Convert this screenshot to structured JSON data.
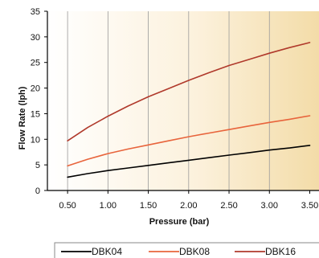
{
  "chart_data": {
    "type": "line",
    "xlabel": "Pressure (bar)",
    "ylabel": "Flow Rate (lph)",
    "xlim": [
      0.25,
      3.5
    ],
    "ylim": [
      0,
      35
    ],
    "x_ticks": [
      "0.50",
      "1.00",
      "1.50",
      "2.00",
      "2.50",
      "3.00",
      "3.50"
    ],
    "y_ticks": [
      "0",
      "5",
      "10",
      "15",
      "20",
      "25",
      "30",
      "35"
    ],
    "grid": "vertical",
    "legend_position": "bottom",
    "x": [
      0.5,
      0.75,
      1.0,
      1.25,
      1.5,
      1.75,
      2.0,
      2.25,
      2.5,
      2.75,
      3.0,
      3.25,
      3.5
    ],
    "series": [
      {
        "name": "DBK04",
        "color": "#000000",
        "values": [
          2.6,
          3.3,
          3.9,
          4.4,
          4.9,
          5.4,
          5.9,
          6.4,
          6.9,
          7.4,
          7.9,
          8.3,
          8.8
        ]
      },
      {
        "name": "DBK08",
        "color": "#e8643c",
        "values": [
          4.8,
          6.1,
          7.2,
          8.1,
          8.9,
          9.7,
          10.5,
          11.2,
          11.9,
          12.6,
          13.3,
          13.9,
          14.6
        ]
      },
      {
        "name": "DBK16",
        "color": "#b0392b",
        "values": [
          9.7,
          12.3,
          14.5,
          16.5,
          18.3,
          19.9,
          21.5,
          23.0,
          24.4,
          25.6,
          26.8,
          27.9,
          28.9
        ]
      }
    ]
  }
}
